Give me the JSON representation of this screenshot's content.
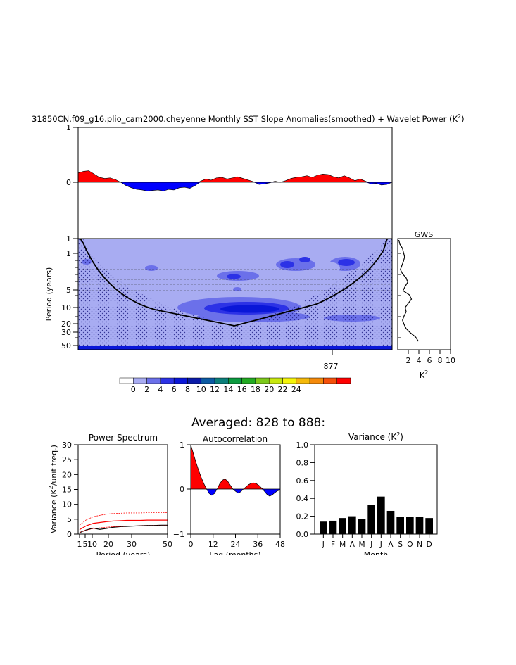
{
  "header": {
    "title": "31850CN.f09_g16.plio_cam2000.cheyenne Monthly SST Slope Anomalies(smoothed) + Wavelet Power (K",
    "title_sup": "2",
    "title_end": ")"
  },
  "averaged_label": "Averaged: 828 to 888:",
  "chart_data": [
    {
      "id": "timeseries",
      "type": "area",
      "ylim": [
        -1,
        1
      ],
      "yticks": [
        "1",
        "0",
        "−1"
      ],
      "y": [
        0.17,
        0.2,
        0.21,
        0.15,
        0.09,
        0.07,
        0.08,
        0.05,
        0.0,
        -0.06,
        -0.1,
        -0.13,
        -0.14,
        -0.16,
        -0.15,
        -0.14,
        -0.16,
        -0.13,
        -0.14,
        -0.1,
        -0.09,
        -0.11,
        -0.06,
        0.02,
        0.06,
        0.04,
        0.08,
        0.09,
        0.06,
        0.08,
        0.1,
        0.07,
        0.04,
        0.01,
        -0.04,
        -0.03,
        -0.01,
        0.02,
        0.0,
        0.03,
        0.07,
        0.09,
        0.1,
        0.12,
        0.09,
        0.13,
        0.15,
        0.14,
        0.1,
        0.08,
        0.12,
        0.08,
        0.03,
        0.06,
        0.02,
        -0.03,
        -0.02,
        -0.05,
        -0.04,
        0.0
      ],
      "pos_color": "#ff0000",
      "neg_color": "#0000ff"
    },
    {
      "id": "wavelet",
      "type": "heatmap",
      "ylabel": "Period (years)",
      "yticks": [
        "1",
        "5",
        "10",
        "20",
        "30",
        "50"
      ],
      "xticks": [
        "877"
      ],
      "colors": [
        "#ffffff",
        "#a8acf2",
        "#6b70ea",
        "#2c32e6",
        "#0a17d8",
        "#0a1aa8",
        "#0b5aa3",
        "#0b7f7a",
        "#0b9a3f",
        "#22aa22",
        "#7cc91b",
        "#c8e80f",
        "#f5f50a",
        "#f5b90a",
        "#f58a0a",
        "#f5500a",
        "#ff0000"
      ],
      "levels": [
        "0",
        "2",
        "4",
        "6",
        "8",
        "10",
        "12",
        "14",
        "16",
        "18",
        "20",
        "22",
        "24"
      ]
    },
    {
      "id": "gws",
      "type": "line",
      "title": "GWS",
      "xlabel": "K",
      "xlabel_sup": "2",
      "xticks": [
        "2",
        "4",
        "6",
        "8",
        "10"
      ],
      "xlim": [
        0,
        10
      ],
      "x": [
        0.2,
        0.4,
        0.9,
        1.1,
        1.3,
        1.1,
        0.8,
        0.5,
        0.9,
        1.6,
        1.9,
        1.4,
        1.0,
        2.2,
        2.6,
        2.0,
        1.4,
        1.6,
        1.2,
        0.9,
        1.2,
        1.6,
        2.4,
        3.4,
        3.9
      ]
    },
    {
      "id": "power_spectrum",
      "type": "line",
      "title": "Power Spectrum",
      "xlabel": "Period (years)",
      "ylabel": "Variance (K",
      "ylabel_sup": "2",
      "ylabel_end": "/unit freq.)",
      "xticks": [
        "1",
        "5",
        "10",
        "20",
        "30",
        "50"
      ],
      "yticks": [
        "0",
        "5",
        "10",
        "15",
        "20",
        "25",
        "30"
      ],
      "ylim": [
        0,
        30
      ],
      "series": [
        {
          "color": "#000000",
          "values": [
            0.5,
            1.4,
            2.0,
            1.6,
            1.9,
            2.3,
            2.5,
            2.6,
            2.7,
            2.8,
            2.9,
            2.9,
            3.0,
            3.0
          ]
        },
        {
          "color": "#ff0000",
          "values": [
            1.5,
            2.8,
            3.6,
            3.9,
            4.2,
            4.4,
            4.5,
            4.6,
            4.6,
            4.6,
            4.7,
            4.7,
            4.7,
            4.7
          ]
        },
        {
          "color": "#ff0000",
          "dashed": true,
          "values": [
            3.0,
            4.8,
            5.8,
            6.3,
            6.7,
            6.9,
            7.0,
            7.1,
            7.1,
            7.1,
            7.2,
            7.2,
            7.2,
            7.2
          ]
        },
        {
          "color": "#ff0000",
          "dashed": true,
          "values": [
            0.6,
            1.3,
            1.8,
            2.1,
            2.3,
            2.5,
            2.6,
            2.7,
            2.7,
            2.8,
            2.8,
            2.8,
            2.8,
            2.8
          ]
        }
      ]
    },
    {
      "id": "autocorrelation",
      "type": "area",
      "title": "Autocorrelation",
      "xlabel": "Lag (months)",
      "xticks": [
        "0",
        "12",
        "24",
        "36",
        "48"
      ],
      "yticks": [
        "1",
        "0",
        "−1"
      ],
      "ylim": [
        -1,
        1
      ],
      "values": [
        1.0,
        0.8,
        0.6,
        0.42,
        0.26,
        0.12,
        0.0,
        -0.1,
        -0.14,
        -0.1,
        0.0,
        0.12,
        0.2,
        0.23,
        0.18,
        0.09,
        0.0,
        -0.05,
        -0.09,
        -0.06,
        0.0,
        0.05,
        0.1,
        0.13,
        0.14,
        0.12,
        0.08,
        0.02,
        -0.05,
        -0.12,
        -0.16,
        -0.13,
        -0.08,
        -0.04,
        -0.02
      ]
    },
    {
      "id": "variance",
      "type": "bar",
      "title": "Variance (K",
      "title_sup": "2",
      "title_end": ")",
      "xlabel": "Month",
      "categories": [
        "J",
        "F",
        "M",
        "A",
        "M",
        "J",
        "J",
        "A",
        "S",
        "O",
        "N",
        "D"
      ],
      "values": [
        0.14,
        0.15,
        0.18,
        0.2,
        0.17,
        0.33,
        0.42,
        0.26,
        0.19,
        0.19,
        0.19,
        0.18
      ],
      "yticks": [
        "0.0",
        "0.2",
        "0.4",
        "0.6",
        "0.8",
        "1.0"
      ],
      "ylim": [
        0,
        1.0
      ]
    }
  ]
}
